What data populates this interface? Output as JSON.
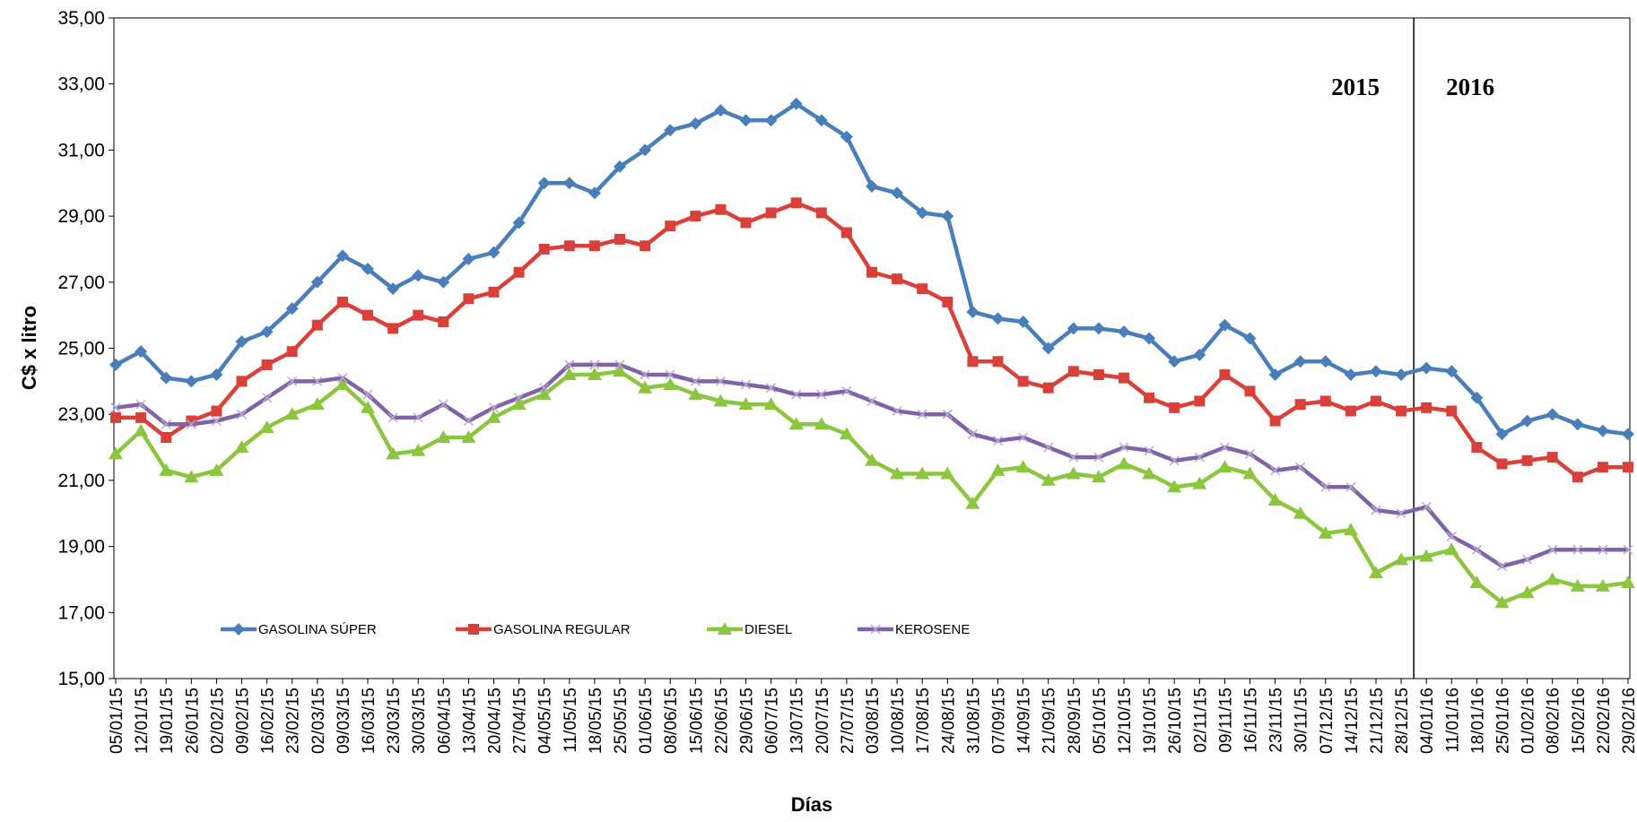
{
  "chart_data": {
    "type": "line",
    "x_label": "Días",
    "y_label": "C$ x litro",
    "annotations": [
      "2015",
      "2016"
    ],
    "categories": [
      "05/01/15",
      "12/01/15",
      "19/01/15",
      "26/01/15",
      "02/02/15",
      "09/02/15",
      "16/02/15",
      "23/02/15",
      "02/03/15",
      "09/03/15",
      "16/03/15",
      "23/03/15",
      "30/03/15",
      "06/04/15",
      "13/04/15",
      "20/04/15",
      "27/04/15",
      "04/05/15",
      "11/05/15",
      "18/05/15",
      "25/05/15",
      "01/06/15",
      "08/06/15",
      "15/06/15",
      "22/06/15",
      "29/06/15",
      "06/07/15",
      "13/07/15",
      "20/07/15",
      "27/07/15",
      "03/08/15",
      "10/08/15",
      "17/08/15",
      "24/08/15",
      "31/08/15",
      "07/09/15",
      "14/09/15",
      "21/09/15",
      "28/09/15",
      "05/10/15",
      "12/10/15",
      "19/10/15",
      "26/10/15",
      "02/11/15",
      "09/11/15",
      "16/11/15",
      "23/11/15",
      "30/11/15",
      "07/12/15",
      "14/12/15",
      "21/12/15",
      "28/12/15",
      "04/01/16",
      "11/01/16",
      "18/01/16",
      "25/01/16",
      "01/02/16",
      "08/02/16",
      "15/02/16",
      "22/02/16",
      "29/02/16"
    ],
    "series": [
      {
        "name": "GASOLINA  SÚPER",
        "color": "#4a7ebb",
        "marker": "diamond",
        "values": [
          24.5,
          24.9,
          24.1,
          24.0,
          24.2,
          25.2,
          25.5,
          26.2,
          27.0,
          27.8,
          27.4,
          26.8,
          27.2,
          27.0,
          27.7,
          27.9,
          28.8,
          30.0,
          30.0,
          29.7,
          30.5,
          31.0,
          31.6,
          31.8,
          32.2,
          31.9,
          31.9,
          32.4,
          31.9,
          31.4,
          29.9,
          29.7,
          29.1,
          29.0,
          26.1,
          25.9,
          25.8,
          25.0,
          25.6,
          25.6,
          25.5,
          25.3,
          24.6,
          24.8,
          25.7,
          25.3,
          24.2,
          24.6,
          24.6,
          24.2,
          24.3,
          24.2,
          24.4,
          24.3,
          23.5,
          22.4,
          22.8,
          23.0,
          22.7,
          22.5,
          22.4
        ]
      },
      {
        "name": "GASOLINA REGULAR",
        "color": "#d9403a",
        "marker": "square",
        "values": [
          22.9,
          22.9,
          22.3,
          22.8,
          23.1,
          24.0,
          24.5,
          24.9,
          25.7,
          26.4,
          26.0,
          25.6,
          26.0,
          25.8,
          26.5,
          26.7,
          27.3,
          28.0,
          28.1,
          28.1,
          28.3,
          28.1,
          28.7,
          29.0,
          29.2,
          28.8,
          29.1,
          29.4,
          29.1,
          28.5,
          27.3,
          27.1,
          26.8,
          26.4,
          24.6,
          24.6,
          24.0,
          23.8,
          24.3,
          24.2,
          24.1,
          23.5,
          23.2,
          23.4,
          24.2,
          23.7,
          22.8,
          23.3,
          23.4,
          23.1,
          23.4,
          23.1,
          23.2,
          23.1,
          22.0,
          21.5,
          21.6,
          21.7,
          21.1,
          21.4,
          21.4
        ]
      },
      {
        "name": "DIESEL",
        "color": "#8cc63e",
        "marker": "triangle",
        "values": [
          21.8,
          22.5,
          21.3,
          21.1,
          21.3,
          22.0,
          22.6,
          23.0,
          23.3,
          23.9,
          23.2,
          21.8,
          21.9,
          22.3,
          22.3,
          22.9,
          23.3,
          23.6,
          24.2,
          24.2,
          24.3,
          23.8,
          23.9,
          23.6,
          23.4,
          23.3,
          23.3,
          22.7,
          22.7,
          22.4,
          21.6,
          21.2,
          21.2,
          21.2,
          20.3,
          21.3,
          21.4,
          21.0,
          21.2,
          21.1,
          21.5,
          21.2,
          20.8,
          20.9,
          21.4,
          21.2,
          20.4,
          20.0,
          19.4,
          19.5,
          18.2,
          18.6,
          18.7,
          18.9,
          17.9,
          17.3,
          17.6,
          18.0,
          17.8,
          17.8,
          17.9
        ]
      },
      {
        "name": "KEROSENE",
        "color": "#8062a8",
        "marker": "x",
        "values": [
          23.2,
          23.3,
          22.7,
          22.7,
          22.8,
          23.0,
          23.5,
          24.0,
          24.0,
          24.1,
          23.6,
          22.9,
          22.9,
          23.3,
          22.8,
          23.2,
          23.5,
          23.8,
          24.5,
          24.5,
          24.5,
          24.2,
          24.2,
          24.0,
          24.0,
          23.9,
          23.8,
          23.6,
          23.6,
          23.7,
          23.4,
          23.1,
          23.0,
          23.0,
          22.4,
          22.2,
          22.3,
          22.0,
          21.7,
          21.7,
          22.0,
          21.9,
          21.6,
          21.7,
          22.0,
          21.8,
          21.3,
          21.4,
          20.8,
          20.8,
          20.1,
          20.0,
          20.2,
          19.3,
          18.9,
          18.4,
          18.6,
          18.9,
          18.9,
          18.9,
          18.9
        ]
      }
    ],
    "ylim": [
      15,
      35
    ],
    "yticks": [
      {
        "value": 15,
        "label": "15,00"
      },
      {
        "value": 17,
        "label": "17,00"
      },
      {
        "value": 19,
        "label": "19,00"
      },
      {
        "value": 21,
        "label": "21,00"
      },
      {
        "value": 23,
        "label": "23,00"
      },
      {
        "value": 25,
        "label": "25,00"
      },
      {
        "value": 27,
        "label": "27,00"
      },
      {
        "value": 29,
        "label": "29,00"
      },
      {
        "value": 31,
        "label": "31,00"
      },
      {
        "value": 33,
        "label": "33,00"
      },
      {
        "value": 35,
        "label": "35,00"
      }
    ],
    "grid": false,
    "legend": "lower left"
  }
}
